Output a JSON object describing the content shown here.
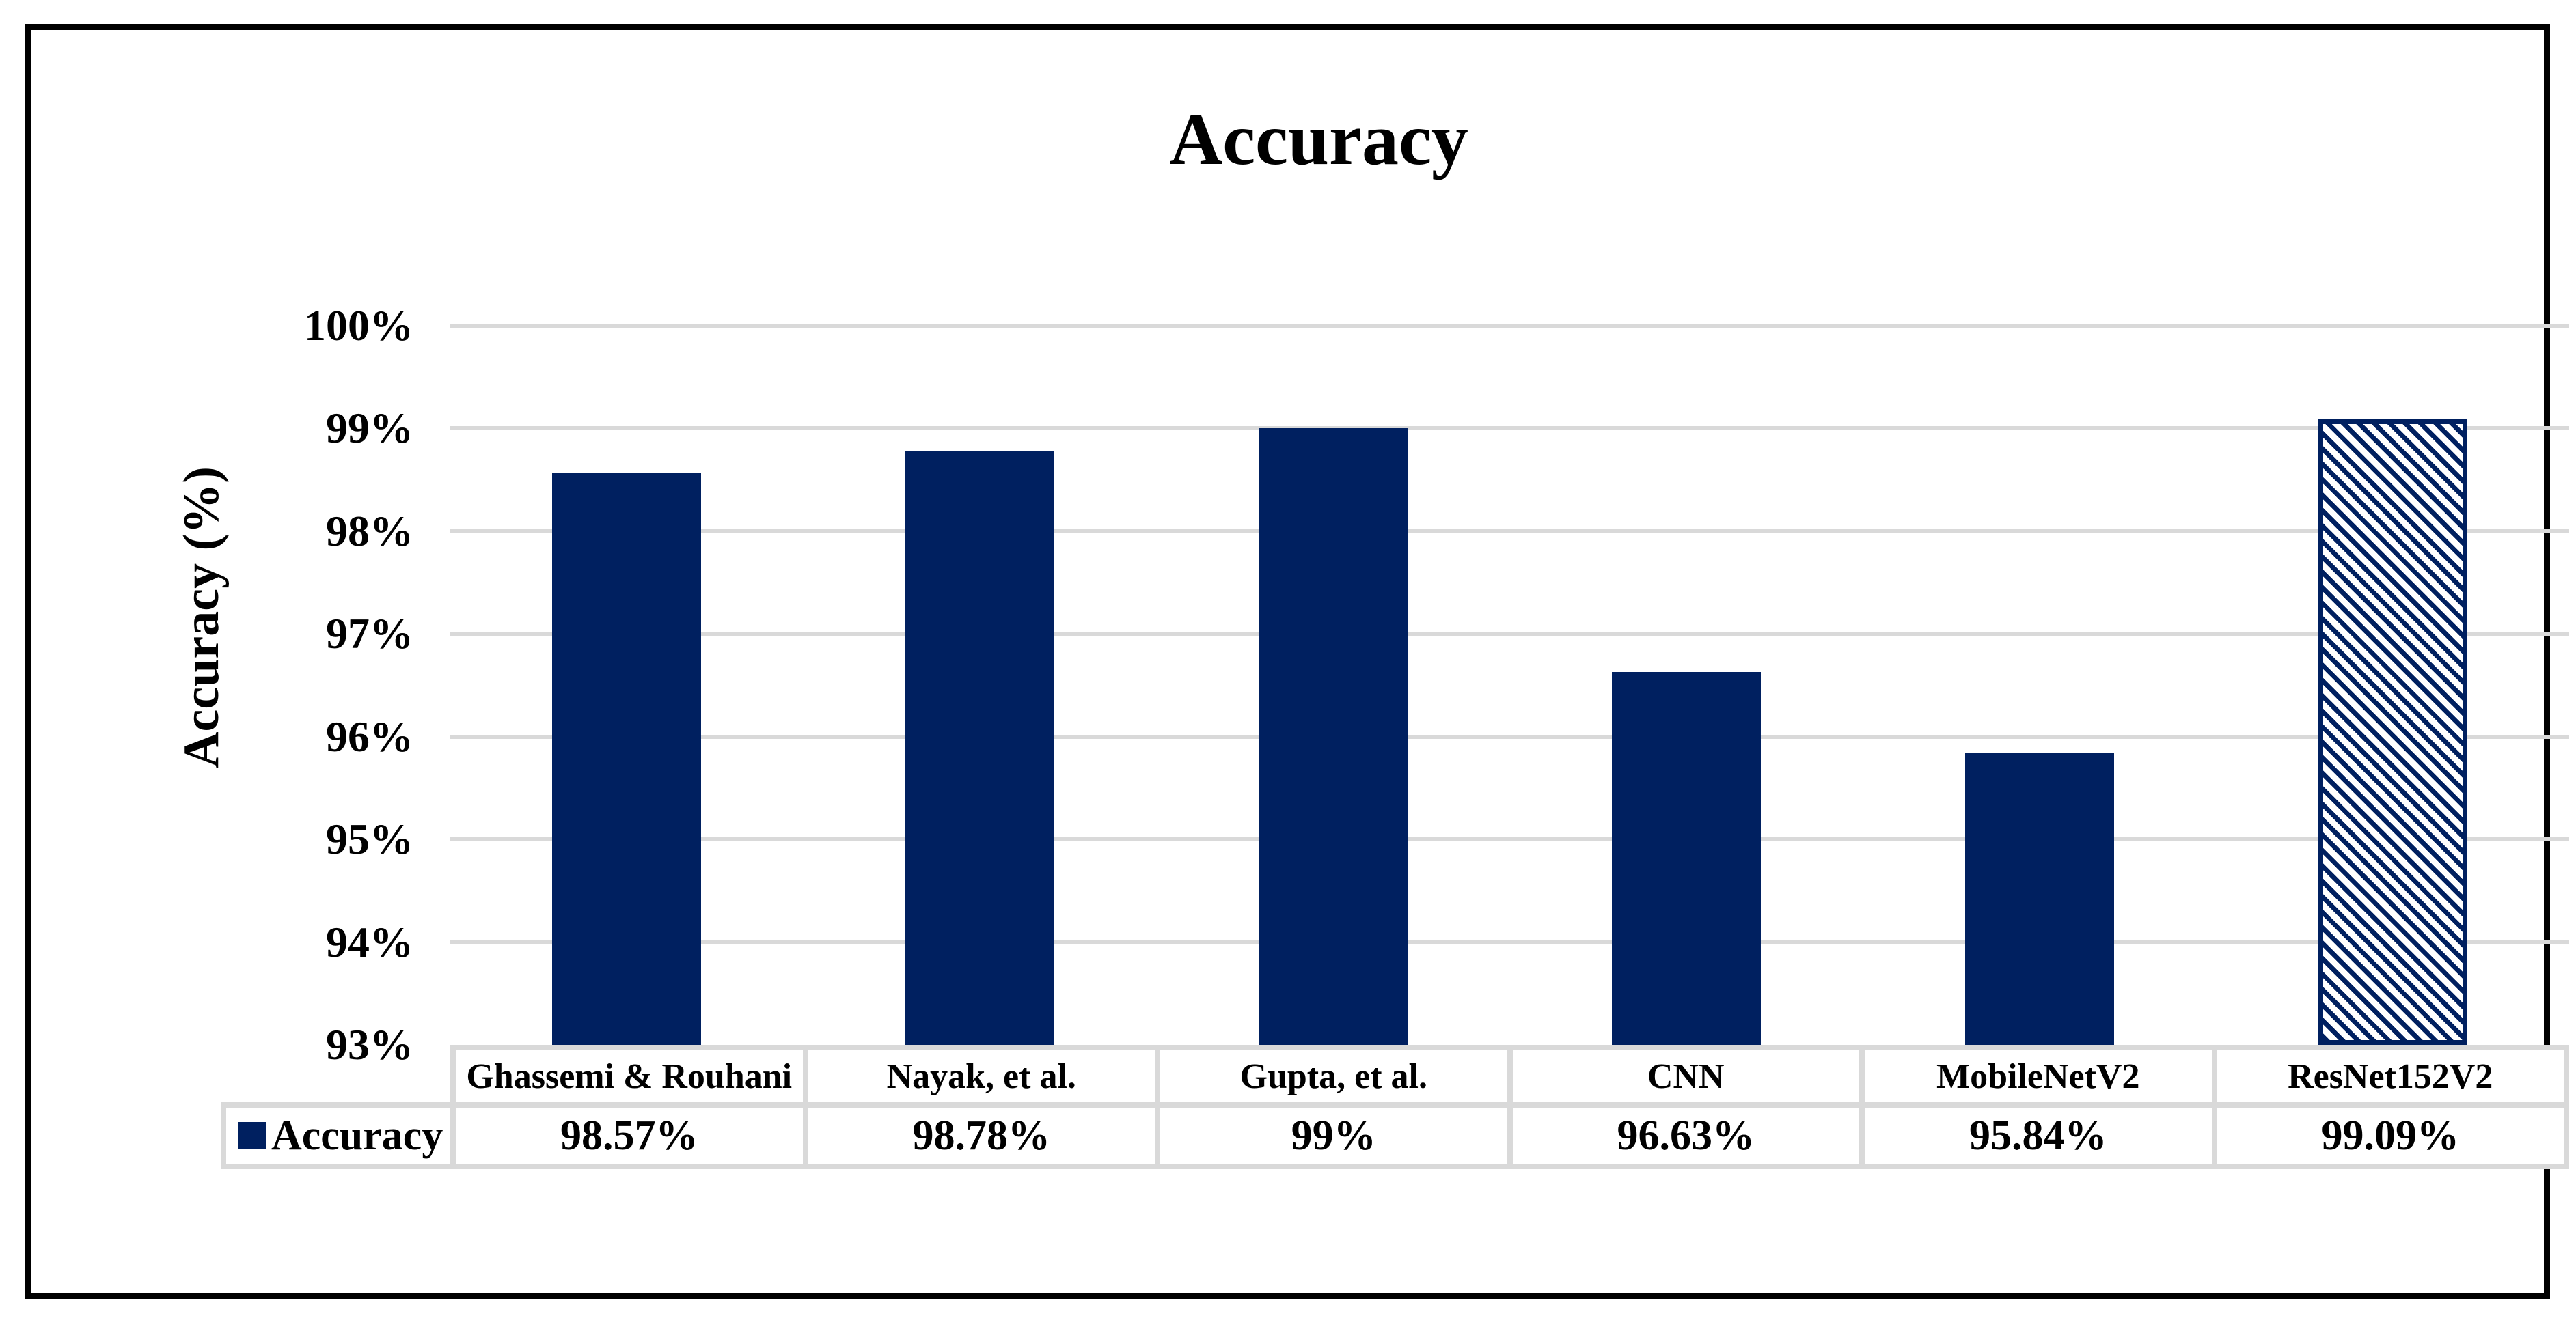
{
  "chart_data": {
    "type": "bar",
    "title": "Accuracy",
    "xlabel": "",
    "ylabel": "Accuracy (%)",
    "categories": [
      "Ghassemi & Rouhani",
      "Nayak, et al.",
      "Gupta, et al.",
      "CNN",
      "MobileNetV2",
      "ResNet152V2"
    ],
    "series": [
      {
        "name": "Accuracy",
        "values": [
          98.57,
          98.78,
          99,
          96.63,
          95.84,
          99.09
        ],
        "display_values": [
          "98.57%",
          "98.78%",
          "99%",
          "96.63%",
          "95.84%",
          "99.09%"
        ]
      }
    ],
    "ylim": [
      93,
      100
    ],
    "ytick_step": 1,
    "ytick_labels": [
      "100%",
      "99%",
      "98%",
      "97%",
      "96%",
      "95%",
      "94%",
      "93%"
    ],
    "grid": "horizontal-only",
    "legend_position": "bottom-left-of-data-table",
    "layout": "data-table-below-plot",
    "colors": {
      "bar_fill": "#002060",
      "hatched_bar_index": 5,
      "hatch_style": "diagonal-45deg-navy-on-white",
      "gridline": "#D9D9D9",
      "table_border": "#D9D9D9",
      "text": "#000000",
      "frame_border": "#000000",
      "background": "#FFFFFF"
    }
  }
}
